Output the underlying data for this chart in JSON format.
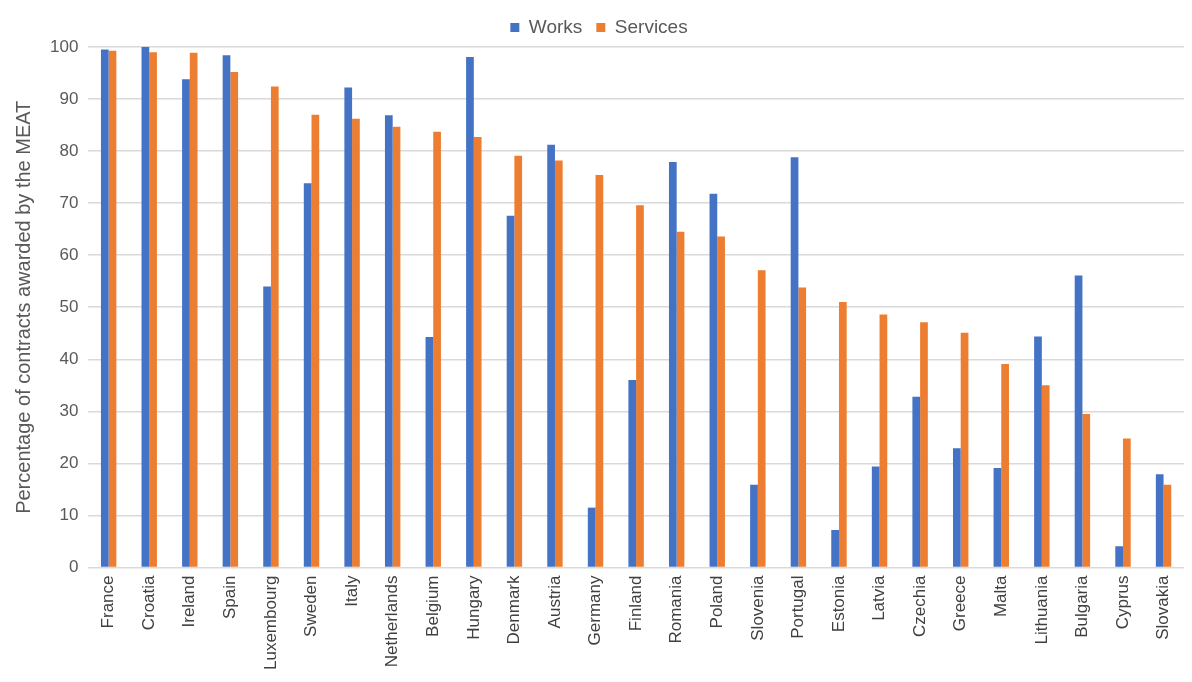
{
  "chart_data": {
    "type": "bar",
    "ylabel": "Percentage of contracts awarded by the MEAT",
    "categories": [
      "France",
      "Croatia",
      "Ireland",
      "Spain",
      "Luxembourg",
      "Sweden",
      "Italy",
      "Netherlands",
      "Belgium",
      "Hungary",
      "Denmark",
      "Austria",
      "Germany",
      "Finland",
      "Romania",
      "Poland",
      "Slovenia",
      "Portugal",
      "Estonia",
      "Latvia",
      "Czechia",
      "Greece",
      "Malta",
      "Lithuania",
      "Bulgaria",
      "Cyprus",
      "Slovakia"
    ],
    "series": [
      {
        "name": "Works",
        "color": "#4472c4",
        "values": [
          99.5,
          100,
          93.8,
          98.4,
          54,
          73.8,
          92.2,
          86.9,
          44.3,
          98.1,
          67.6,
          81.2,
          11.5,
          36,
          77.9,
          71.8,
          15.9,
          78.8,
          7.2,
          19.4,
          32.8,
          22.9,
          19.1,
          44.4,
          56.1,
          4.1,
          17.9
        ]
      },
      {
        "name": "Services",
        "color": "#ed7d31",
        "values": [
          99.3,
          99,
          98.9,
          95.2,
          92.4,
          87,
          86.2,
          84.7,
          83.7,
          82.7,
          79.1,
          78.2,
          75.4,
          69.6,
          64.5,
          63.6,
          57.1,
          53.8,
          51,
          48.6,
          47.1,
          45.1,
          39.1,
          35,
          29.5,
          24.8,
          15.9
        ]
      }
    ],
    "ylim": [
      0,
      100
    ],
    "yticks": [
      0,
      10,
      20,
      30,
      40,
      50,
      60,
      70,
      80,
      90,
      100
    ],
    "grid": "y",
    "legend": "top"
  }
}
